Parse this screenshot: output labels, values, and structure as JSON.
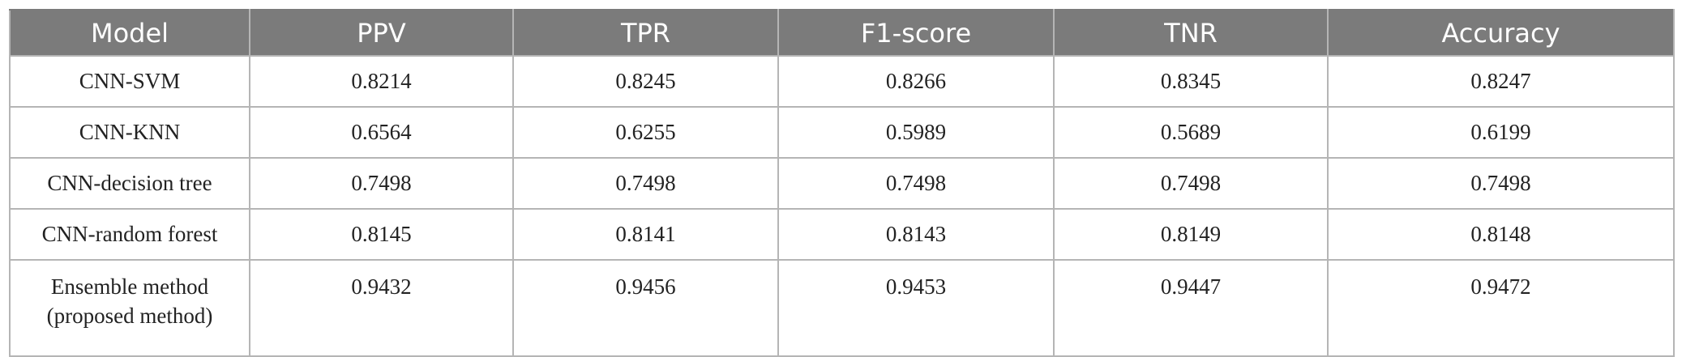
{
  "table": {
    "header": [
      "Model",
      "PPV",
      "TPR",
      "F1-score",
      "TNR",
      "Accuracy"
    ],
    "rows": [
      [
        [
          "CNN-SVM"
        ],
        "0.8214",
        "0.8245",
        "0.8266",
        "0.8345",
        "0.8247"
      ],
      [
        [
          "CNN-KNN"
        ],
        "0.6564",
        "0.6255",
        "0.5989",
        "0.5689",
        "0.6199"
      ],
      [
        [
          "CNN-decision tree"
        ],
        "0.7498",
        "0.7498",
        "0.7498",
        "0.7498",
        "0.7498"
      ],
      [
        [
          "CNN-random forest"
        ],
        "0.8145",
        "0.8141",
        "0.8143",
        "0.8149",
        "0.8148"
      ],
      [
        [
          "Ensemble method",
          "(proposed method)"
        ],
        "0.9432",
        "0.9456",
        "0.9453",
        "0.9447",
        "0.9472"
      ]
    ]
  }
}
